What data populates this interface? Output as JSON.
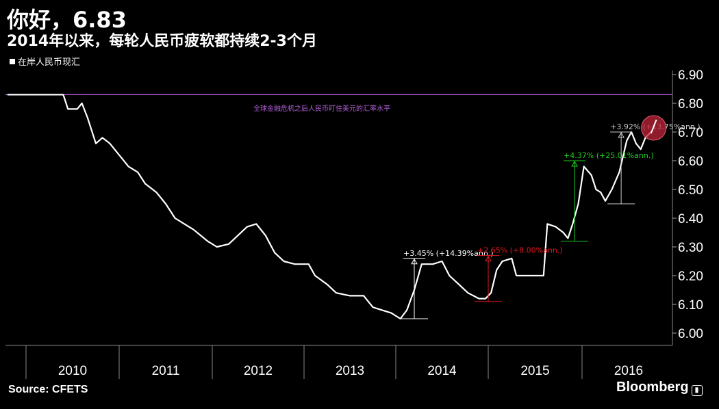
{
  "header": {
    "title": "你好，6.83",
    "subtitle": "2014年以来，每轮人民币疲软都持续2-3个月",
    "legend_label": "在岸人民币现汇",
    "source": "Source:  CFETS",
    "brand": "Bloomberg"
  },
  "colors": {
    "background": "#000000",
    "series": "#ffffff",
    "reference_line": "#b25fd6",
    "annotation_white": "#ffffff",
    "annotation_red": "#e0171f",
    "annotation_green": "#1fcf1f",
    "highlight_circle": "#c0263a"
  },
  "chart_data": {
    "type": "line",
    "title": "你好，6.83",
    "subtitle": "2014年以来，每轮人民币疲软都持续2-3个月",
    "xlabel": "",
    "ylabel": "",
    "y_axis_side": "right",
    "ylim": [
      6.0,
      6.9
    ],
    "xlim": [
      2009.8,
      2016.75
    ],
    "yticks": [
      "6.00",
      "6.10",
      "6.20",
      "6.30",
      "6.40",
      "6.50",
      "6.60",
      "6.70",
      "6.80",
      "6.90"
    ],
    "xticks": [
      "2010",
      "2011",
      "2012",
      "2013",
      "2014",
      "2015",
      "2016"
    ],
    "grid": false,
    "legend": "top-left",
    "series": [
      {
        "name": "在岸人民币现汇",
        "points": [
          [
            2009.8,
            6.83
          ],
          [
            2009.95,
            6.83
          ],
          [
            2010.1,
            6.83
          ],
          [
            2010.25,
            6.83
          ],
          [
            2010.4,
            6.83
          ],
          [
            2010.45,
            6.78
          ],
          [
            2010.55,
            6.78
          ],
          [
            2010.6,
            6.8
          ],
          [
            2010.66,
            6.75
          ],
          [
            2010.75,
            6.66
          ],
          [
            2010.82,
            6.68
          ],
          [
            2010.9,
            6.66
          ],
          [
            2011.0,
            6.62
          ],
          [
            2011.1,
            6.58
          ],
          [
            2011.2,
            6.56
          ],
          [
            2011.28,
            6.52
          ],
          [
            2011.4,
            6.49
          ],
          [
            2011.5,
            6.45
          ],
          [
            2011.6,
            6.4
          ],
          [
            2011.7,
            6.38
          ],
          [
            2011.8,
            6.36
          ],
          [
            2011.95,
            6.32
          ],
          [
            2012.05,
            6.3
          ],
          [
            2012.18,
            6.31
          ],
          [
            2012.28,
            6.34
          ],
          [
            2012.38,
            6.37
          ],
          [
            2012.48,
            6.38
          ],
          [
            2012.58,
            6.34
          ],
          [
            2012.68,
            6.28
          ],
          [
            2012.78,
            6.25
          ],
          [
            2012.9,
            6.24
          ],
          [
            2013.05,
            6.24
          ],
          [
            2013.12,
            6.2
          ],
          [
            2013.25,
            6.17
          ],
          [
            2013.35,
            6.14
          ],
          [
            2013.5,
            6.13
          ],
          [
            2013.65,
            6.13
          ],
          [
            2013.75,
            6.09
          ],
          [
            2013.85,
            6.08
          ],
          [
            2013.95,
            6.07
          ],
          [
            2014.05,
            6.05
          ],
          [
            2014.12,
            6.08
          ],
          [
            2014.2,
            6.15
          ],
          [
            2014.28,
            6.24
          ],
          [
            2014.4,
            6.24
          ],
          [
            2014.5,
            6.25
          ],
          [
            2014.58,
            6.2
          ],
          [
            2014.68,
            6.17
          ],
          [
            2014.78,
            6.14
          ],
          [
            2014.9,
            6.12
          ],
          [
            2014.97,
            6.12
          ],
          [
            2015.03,
            6.14
          ],
          [
            2015.09,
            6.22
          ],
          [
            2015.15,
            6.25
          ],
          [
            2015.25,
            6.26
          ],
          [
            2015.3,
            6.2
          ],
          [
            2015.45,
            6.2
          ],
          [
            2015.59,
            6.2
          ],
          [
            2015.63,
            6.38
          ],
          [
            2015.72,
            6.37
          ],
          [
            2015.8,
            6.35
          ],
          [
            2015.85,
            6.33
          ],
          [
            2015.9,
            6.38
          ],
          [
            2015.96,
            6.45
          ],
          [
            2016.02,
            6.58
          ],
          [
            2016.1,
            6.55
          ],
          [
            2016.15,
            6.5
          ],
          [
            2016.2,
            6.49
          ],
          [
            2016.25,
            6.46
          ],
          [
            2016.32,
            6.5
          ],
          [
            2016.4,
            6.56
          ],
          [
            2016.48,
            6.67
          ],
          [
            2016.53,
            6.7
          ],
          [
            2016.58,
            6.66
          ],
          [
            2016.63,
            6.64
          ],
          [
            2016.68,
            6.68
          ],
          [
            2016.74,
            6.7
          ]
        ]
      }
    ],
    "reference_line": {
      "y": 6.83,
      "label": "全球金融危机之后人民币盯住美元的汇率水平"
    },
    "annotations": [
      {
        "label": "+3.45% (+14.39%ann.)",
        "x": 2014.2,
        "y_low": 6.05,
        "y_high": 6.26,
        "color": "#ffffff"
      },
      {
        "label": "+2.65% (+8.00%ann.)",
        "x": 2015.0,
        "y_low": 6.11,
        "y_high": 6.27,
        "color": "#e0171f"
      },
      {
        "label": "+4.37% (+25.01%ann.)",
        "x": 2015.92,
        "y_low": 6.32,
        "y_high": 6.6,
        "color": "#1fcf1f"
      },
      {
        "label": "+3.92% (+13.75%ann.)",
        "x": 2016.42,
        "y_low": 6.45,
        "y_high": 6.7,
        "color": "#cccccc"
      }
    ]
  }
}
